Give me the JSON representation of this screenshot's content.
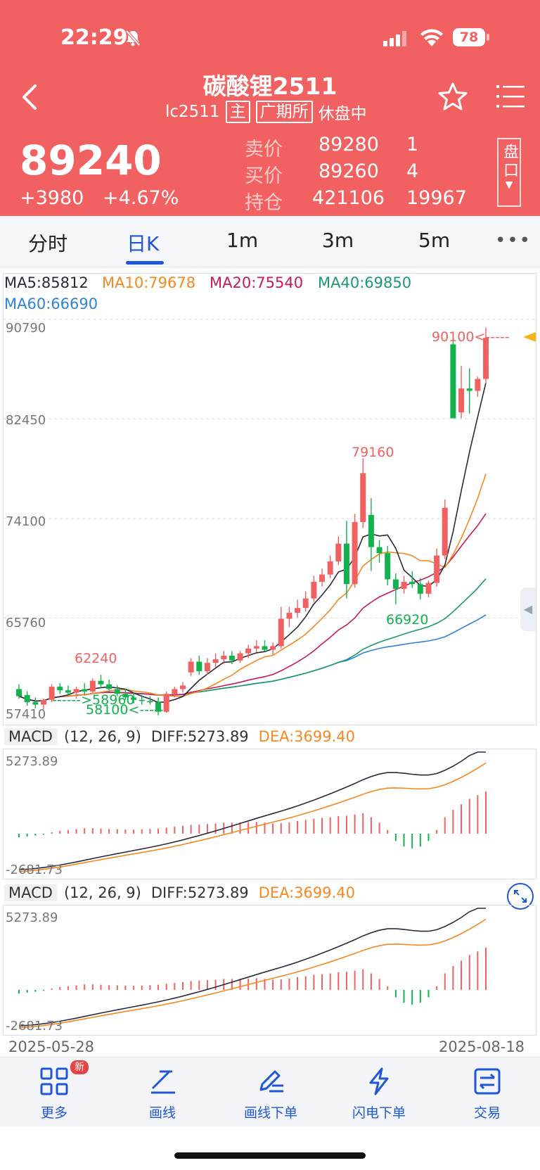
{
  "status": {
    "time": "22:29",
    "battery": "78"
  },
  "header": {
    "title": "碳酸锂2511",
    "code": "lc2511",
    "main_tag": "主",
    "exchange": "广期所",
    "state": "休盘中",
    "last_price": "89240",
    "change": "+3980",
    "change_pct": "+4.67%",
    "quotes": [
      {
        "label": "卖价",
        "value": "89280",
        "qty": "1"
      },
      {
        "label": "买价",
        "value": "89260",
        "qty": "4"
      },
      {
        "label": "持仓",
        "value": "421106",
        "qty": "19967"
      }
    ],
    "panel_button": "盘口"
  },
  "tabs": [
    "分时",
    "日K",
    "1m",
    "3m",
    "5m"
  ],
  "active_tab": "日K",
  "ma": {
    "ma5": "MA5:85812",
    "ma10": "MA10:79678",
    "ma20": "MA20:75540",
    "ma40": "MA40:69850",
    "ma60": "MA60:66690"
  },
  "colors": {
    "up": "#f26161",
    "down": "#12b34f",
    "ma5": "#2a2a3a",
    "ma10": "#f7871f",
    "ma20": "#c8195a",
    "ma40": "#1a9a6c",
    "ma60": "#2d83d8",
    "brand": "#1f57d8"
  },
  "price_axis": [
    "90790",
    "82450",
    "74100",
    "65760",
    "57410"
  ],
  "annotations": {
    "high": "90100<-----",
    "peak": "79160",
    "low_mid": "66920",
    "left_high": "62240",
    "low1": "------>58960",
    "low2": "58100<-----"
  },
  "macd": {
    "label": "MACD",
    "params": "(12, 26, 9)",
    "diff": "DIFF:5273.89",
    "dea": "DEA:3699.40",
    "axis_max": "5273.89",
    "axis_min": "-2681.73"
  },
  "dates": {
    "start": "2025-05-28",
    "end": "2025-08-18"
  },
  "toolbar": [
    {
      "label": "更多",
      "badge": "新"
    },
    {
      "label": "画线"
    },
    {
      "label": "画线下单"
    },
    {
      "label": "闪电下单"
    },
    {
      "label": "交易"
    }
  ],
  "chart_data": {
    "type": "candlestick",
    "y_range": [
      57410,
      90790
    ],
    "candles": [
      {
        "o": 59800,
        "h": 60200,
        "l": 59000,
        "c": 59200
      },
      {
        "o": 59300,
        "h": 59600,
        "l": 58400,
        "c": 58700
      },
      {
        "o": 58700,
        "h": 59100,
        "l": 58200,
        "c": 58500
      },
      {
        "o": 58500,
        "h": 59000,
        "l": 58100,
        "c": 58900
      },
      {
        "o": 58900,
        "h": 60200,
        "l": 58700,
        "c": 60000
      },
      {
        "o": 60000,
        "h": 60300,
        "l": 59400,
        "c": 59700
      },
      {
        "o": 59700,
        "h": 60100,
        "l": 59300,
        "c": 59500
      },
      {
        "o": 59500,
        "h": 60000,
        "l": 59000,
        "c": 59800
      },
      {
        "o": 59800,
        "h": 60300,
        "l": 59300,
        "c": 59600
      },
      {
        "o": 59600,
        "h": 60700,
        "l": 59400,
        "c": 60500
      },
      {
        "o": 60500,
        "h": 61000,
        "l": 59900,
        "c": 60200
      },
      {
        "o": 60200,
        "h": 60600,
        "l": 59600,
        "c": 59800
      },
      {
        "o": 59800,
        "h": 60100,
        "l": 59200,
        "c": 59400
      },
      {
        "o": 59400,
        "h": 59800,
        "l": 58900,
        "c": 59100
      },
      {
        "o": 59100,
        "h": 59500,
        "l": 58600,
        "c": 58900
      },
      {
        "o": 58900,
        "h": 59300,
        "l": 58500,
        "c": 58800
      },
      {
        "o": 58800,
        "h": 59200,
        "l": 58500,
        "c": 58700
      },
      {
        "o": 58700,
        "h": 59100,
        "l": 57600,
        "c": 57900
      },
      {
        "o": 57900,
        "h": 59600,
        "l": 57800,
        "c": 59400
      },
      {
        "o": 59400,
        "h": 60000,
        "l": 59100,
        "c": 59800
      },
      {
        "o": 59800,
        "h": 60400,
        "l": 59500,
        "c": 60100
      },
      {
        "o": 61200,
        "h": 62400,
        "l": 60900,
        "c": 62100
      },
      {
        "o": 62100,
        "h": 62600,
        "l": 61000,
        "c": 61300
      },
      {
        "o": 61300,
        "h": 62400,
        "l": 61000,
        "c": 62000
      },
      {
        "o": 62000,
        "h": 62800,
        "l": 61600,
        "c": 62300
      },
      {
        "o": 62300,
        "h": 63000,
        "l": 61900,
        "c": 62600
      },
      {
        "o": 62600,
        "h": 63000,
        "l": 61900,
        "c": 62200
      },
      {
        "o": 62200,
        "h": 63000,
        "l": 62000,
        "c": 62800
      },
      {
        "o": 62800,
        "h": 63500,
        "l": 62400,
        "c": 63200
      },
      {
        "o": 63200,
        "h": 63900,
        "l": 62900,
        "c": 63400
      },
      {
        "o": 63400,
        "h": 63900,
        "l": 63000,
        "c": 63100
      },
      {
        "o": 63100,
        "h": 63700,
        "l": 62700,
        "c": 63400
      },
      {
        "o": 63400,
        "h": 66700,
        "l": 63200,
        "c": 65700
      },
      {
        "o": 65700,
        "h": 66700,
        "l": 65000,
        "c": 66200
      },
      {
        "o": 66200,
        "h": 67300,
        "l": 65800,
        "c": 66600
      },
      {
        "o": 66600,
        "h": 68000,
        "l": 66300,
        "c": 67400
      },
      {
        "o": 67400,
        "h": 69300,
        "l": 67100,
        "c": 68800
      },
      {
        "o": 68800,
        "h": 69900,
        "l": 68400,
        "c": 69400
      },
      {
        "o": 69400,
        "h": 71000,
        "l": 69100,
        "c": 70500
      },
      {
        "o": 70500,
        "h": 72600,
        "l": 70200,
        "c": 72000
      },
      {
        "o": 72000,
        "h": 73900,
        "l": 67400,
        "c": 68600
      },
      {
        "o": 68600,
        "h": 74500,
        "l": 68300,
        "c": 73800
      },
      {
        "o": 73800,
        "h": 79160,
        "l": 73300,
        "c": 77900
      },
      {
        "o": 74400,
        "h": 75800,
        "l": 69700,
        "c": 71700
      },
      {
        "o": 71700,
        "h": 72300,
        "l": 70400,
        "c": 71200
      },
      {
        "o": 71200,
        "h": 71800,
        "l": 68500,
        "c": 69000
      },
      {
        "o": 69000,
        "h": 69500,
        "l": 66920,
        "c": 68200
      },
      {
        "o": 68200,
        "h": 69300,
        "l": 67800,
        "c": 68800
      },
      {
        "o": 68800,
        "h": 69700,
        "l": 68300,
        "c": 68600
      },
      {
        "o": 68600,
        "h": 69100,
        "l": 67300,
        "c": 67800
      },
      {
        "o": 67800,
        "h": 68900,
        "l": 67500,
        "c": 68700
      },
      {
        "o": 68700,
        "h": 71600,
        "l": 68400,
        "c": 71000
      },
      {
        "o": 71000,
        "h": 75700,
        "l": 70700,
        "c": 75000
      },
      {
        "o": 88700,
        "h": 89400,
        "l": 82500,
        "c": 82500
      },
      {
        "o": 83000,
        "h": 86900,
        "l": 82500,
        "c": 85000
      },
      {
        "o": 85000,
        "h": 86700,
        "l": 82900,
        "c": 84800
      },
      {
        "o": 84800,
        "h": 86000,
        "l": 84300,
        "c": 85800
      },
      {
        "o": 85800,
        "h": 90100,
        "l": 85400,
        "c": 89240
      }
    ],
    "macd_hist": [
      -200,
      -150,
      -100,
      -50,
      80,
      150,
      200,
      250,
      300,
      300,
      280,
      260,
      250,
      230,
      220,
      240,
      260,
      280,
      330,
      380,
      430,
      480,
      500,
      530,
      560,
      600,
      600,
      620,
      620,
      640,
      600,
      560,
      580,
      620,
      700,
      750,
      820,
      860,
      900,
      960,
      980,
      1050,
      1120,
      900,
      600,
      200,
      -400,
      -700,
      -800,
      -700,
      -400,
      200,
      900,
      1300,
      1600,
      1900,
      2100,
      2300
    ]
  }
}
